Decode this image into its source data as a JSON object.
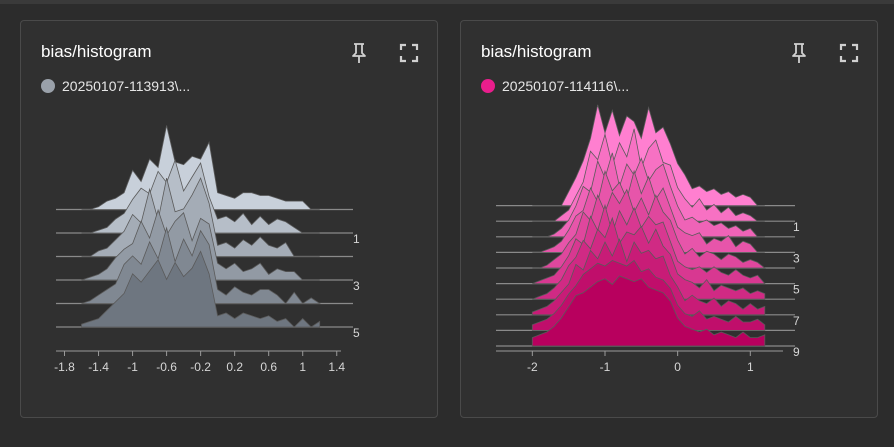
{
  "cards": [
    {
      "title": "bias/histogram",
      "run_label": "20250107-113913\\...",
      "run_color": "#9aa1aa",
      "pin_icon": "pin-icon",
      "expand_icon": "fullscreen-icon",
      "chart_data": {
        "type": "area",
        "title": "bias/histogram",
        "x_ticks": [
          "-1.8",
          "-1.4",
          "-1",
          "-0.6",
          "-0.2",
          "0.2",
          "0.6",
          "1",
          "1.4"
        ],
        "x_range": [
          -1.9,
          1.45
        ],
        "step_labels": [
          "1",
          "3",
          "5"
        ],
        "num_steps": 6,
        "color_back": "#c8d0da",
        "color_front": "#6e7680",
        "bins": [
          -1.6,
          -1.5,
          -1.4,
          -1.3,
          -1.2,
          -1.1,
          -1.0,
          -0.9,
          -0.8,
          -0.7,
          -0.6,
          -0.5,
          -0.4,
          -0.3,
          -0.2,
          -0.1,
          0.0,
          0.1,
          0.2,
          0.3,
          0.4,
          0.5,
          0.6,
          0.7,
          0.8,
          0.9,
          1.0,
          1.1,
          1.2
        ],
        "series": [
          {
            "step": 0,
            "counts": [
              0,
              0,
              0.1,
              0.3,
              0.4,
              0.6,
              1.4,
              1.0,
              1.8,
              1.5,
              3.0,
              1.7,
              1.6,
              1.9,
              1.8,
              2.4,
              0.6,
              0.5,
              0.4,
              0.6,
              0.6,
              0.5,
              0.5,
              0.4,
              0.3,
              0.3,
              0.3,
              0,
              0
            ]
          },
          {
            "step": 1,
            "counts": [
              0,
              0,
              0.1,
              0.2,
              0.5,
              0.7,
              1.2,
              1.6,
              1.4,
              2.2,
              1.8,
              2.6,
              1.5,
              2.0,
              2.5,
              1.3,
              0.5,
              0.6,
              0.4,
              0.7,
              0.3,
              0.6,
              0.3,
              0.5,
              0.4,
              0.2,
              0,
              0,
              0
            ]
          },
          {
            "step": 2,
            "counts": [
              0,
              0,
              0.2,
              0.3,
              0.6,
              0.9,
              1.5,
              1.2,
              2.4,
              1.3,
              2.8,
              1.6,
              1.7,
              2.2,
              2.8,
              1.9,
              0.4,
              0.5,
              0.3,
              0.6,
              0.4,
              0.7,
              0.4,
              0.3,
              0.5,
              0,
              0,
              0,
              0
            ]
          },
          {
            "step": 3,
            "counts": [
              0,
              0.1,
              0.2,
              0.4,
              0.8,
              1.1,
              1.3,
              2.1,
              1.5,
              2.5,
              1.6,
              2.1,
              2.4,
              1.4,
              2.2,
              2.0,
              0.6,
              0.4,
              0.6,
              0.3,
              0.4,
              0.6,
              0.2,
              0.4,
              0.3,
              0.3,
              0,
              0,
              0
            ]
          },
          {
            "step": 4,
            "counts": [
              0,
              0.1,
              0.3,
              0.5,
              0.7,
              1.4,
              1.7,
              1.4,
              2.2,
              1.6,
              2.7,
              1.5,
              2.3,
              1.7,
              2.6,
              2.1,
              0.5,
              0.3,
              0.6,
              0.4,
              0.3,
              0.5,
              0.5,
              0.3,
              0,
              0.4,
              0,
              0.2,
              0
            ]
          },
          {
            "step": 5,
            "counts": [
              0.1,
              0.2,
              0.3,
              0.6,
              0.9,
              1.2,
              1.9,
              1.6,
              2.0,
              2.4,
              1.7,
              2.3,
              1.8,
              2.1,
              2.7,
              1.9,
              0.4,
              0.5,
              0.3,
              0.5,
              0.4,
              0.3,
              0.4,
              0.2,
              0.3,
              0,
              0.3,
              0,
              0.2
            ]
          }
        ]
      }
    },
    {
      "title": "bias/histogram",
      "run_label": "20250107-114116\\...",
      "run_color": "#e91e8c",
      "pin_icon": "pin-icon",
      "expand_icon": "fullscreen-icon",
      "chart_data": {
        "type": "area",
        "title": "bias/histogram",
        "x_ticks": [
          "-2",
          "-1",
          "0",
          "1"
        ],
        "x_range": [
          -2.5,
          1.45
        ],
        "step_labels": [
          "1",
          "3",
          "5",
          "7",
          "9"
        ],
        "num_steps": 10,
        "color_back": "#ff7fd0",
        "color_front": "#b8005e",
        "bins": [
          -2.0,
          -1.9,
          -1.8,
          -1.7,
          -1.6,
          -1.5,
          -1.4,
          -1.3,
          -1.2,
          -1.1,
          -1.0,
          -0.9,
          -0.8,
          -0.7,
          -0.6,
          -0.5,
          -0.4,
          -0.3,
          -0.2,
          -0.1,
          0.0,
          0.1,
          0.2,
          0.3,
          0.4,
          0.5,
          0.6,
          0.7,
          0.8,
          0.9,
          1.0,
          1.1,
          1.2
        ],
        "series": [
          {
            "step": 0,
            "counts": [
              0,
              0,
              0,
              0,
              0,
              0.5,
              1.0,
              1.6,
              2.4,
              3.6,
              2.6,
              3.4,
              2.5,
              3.2,
              3.0,
              2.4,
              3.5,
              2.6,
              2.8,
              2.2,
              1.5,
              1.1,
              0.6,
              0.7,
              0.5,
              0.6,
              0.4,
              0.5,
              0.3,
              0.4,
              0.3,
              0,
              0
            ]
          },
          {
            "step": 1,
            "counts": [
              0,
              0,
              0,
              0,
              0.2,
              0.4,
              0.9,
              1.4,
              2.5,
              2.2,
              3.1,
              2.0,
              2.8,
              2.3,
              3.3,
              1.9,
              2.6,
              2.9,
              2.1,
              2.0,
              1.2,
              0.8,
              0.5,
              0.8,
              0.4,
              0.6,
              0.3,
              0.5,
              0.2,
              0.3,
              0.2,
              0,
              0
            ]
          },
          {
            "step": 2,
            "counts": [
              0,
              0,
              0,
              0.1,
              0.3,
              0.6,
              1.1,
              1.8,
              1.6,
              2.7,
              2.1,
              3.0,
              1.8,
              2.6,
              2.2,
              2.8,
              2.0,
              2.4,
              2.6,
              1.8,
              1.1,
              0.6,
              0.7,
              0.5,
              0.6,
              0.4,
              0.5,
              0.3,
              0.4,
              0.2,
              0.3,
              0,
              0
            ]
          },
          {
            "step": 3,
            "counts": [
              0,
              0,
              0.1,
              0.2,
              0.4,
              0.8,
              1.3,
              1.5,
              2.3,
              1.8,
              2.9,
              2.2,
              2.5,
              1.9,
              2.9,
              2.1,
              2.7,
              1.9,
              2.3,
              1.6,
              0.9,
              0.7,
              0.6,
              0.7,
              0.3,
              0.5,
              0.4,
              0.6,
              0.2,
              0.4,
              0.3,
              0,
              0
            ]
          },
          {
            "step": 4,
            "counts": [
              0,
              0,
              0.1,
              0.3,
              0.5,
              0.9,
              1.2,
              2.0,
              1.7,
              2.6,
              2.0,
              2.7,
              2.3,
              2.8,
              2.0,
              2.5,
              1.9,
              2.6,
              2.0,
              1.7,
              1.0,
              0.5,
              0.7,
              0.4,
              0.6,
              0.5,
              0.3,
              0.5,
              0.4,
              0.2,
              0.3,
              0.2,
              0
            ]
          },
          {
            "step": 5,
            "counts": [
              0,
              0.1,
              0.2,
              0.3,
              0.6,
              1.0,
              1.6,
              1.4,
              2.4,
              1.9,
              2.8,
              1.8,
              2.6,
              2.1,
              2.7,
              2.0,
              2.4,
              2.1,
              2.2,
              1.5,
              0.8,
              0.6,
              0.5,
              0.6,
              0.4,
              0.6,
              0.4,
              0.3,
              0.5,
              0.3,
              0.2,
              0.3,
              0
            ]
          },
          {
            "step": 6,
            "counts": [
              0,
              0.1,
              0.2,
              0.4,
              0.7,
              1.2,
              1.5,
              2.1,
              1.8,
              2.5,
              2.2,
              2.9,
              2.0,
              2.4,
              2.3,
              2.6,
              2.0,
              2.5,
              1.9,
              1.6,
              0.9,
              0.7,
              0.6,
              0.4,
              0.7,
              0.3,
              0.5,
              0.4,
              0.3,
              0.4,
              0.2,
              0.3,
              0.2
            ]
          },
          {
            "step": 7,
            "counts": [
              0.1,
              0.2,
              0.3,
              0.5,
              0.8,
              1.1,
              1.8,
              1.6,
              2.3,
              2.0,
              2.6,
              2.1,
              2.7,
              1.9,
              2.6,
              2.2,
              2.3,
              2.0,
              2.1,
              1.4,
              1.0,
              0.5,
              0.7,
              0.5,
              0.4,
              0.6,
              0.3,
              0.5,
              0.4,
              0.2,
              0.4,
              0.2,
              0.3
            ]
          },
          {
            "step": 8,
            "counts": [
              0.2,
              0.3,
              0.4,
              0.6,
              0.9,
              1.3,
              1.6,
              2.0,
              2.2,
              2.4,
              2.3,
              2.5,
              2.4,
              2.3,
              2.5,
              2.1,
              2.2,
              1.9,
              1.8,
              1.5,
              0.9,
              0.6,
              0.5,
              0.7,
              0.4,
              0.5,
              0.4,
              0.3,
              0.5,
              0.3,
              0.3,
              0.4,
              0.2
            ]
          },
          {
            "step": 9,
            "counts": [
              0.3,
              0.4,
              0.5,
              0.7,
              1.0,
              1.4,
              1.8,
              1.9,
              2.1,
              2.3,
              2.4,
              2.2,
              2.5,
              2.4,
              2.3,
              2.4,
              2.1,
              2.0,
              1.9,
              1.6,
              1.0,
              0.7,
              0.6,
              0.5,
              0.6,
              0.4,
              0.5,
              0.4,
              0.3,
              0.5,
              0.3,
              0.3,
              0.4
            ]
          }
        ]
      }
    }
  ]
}
